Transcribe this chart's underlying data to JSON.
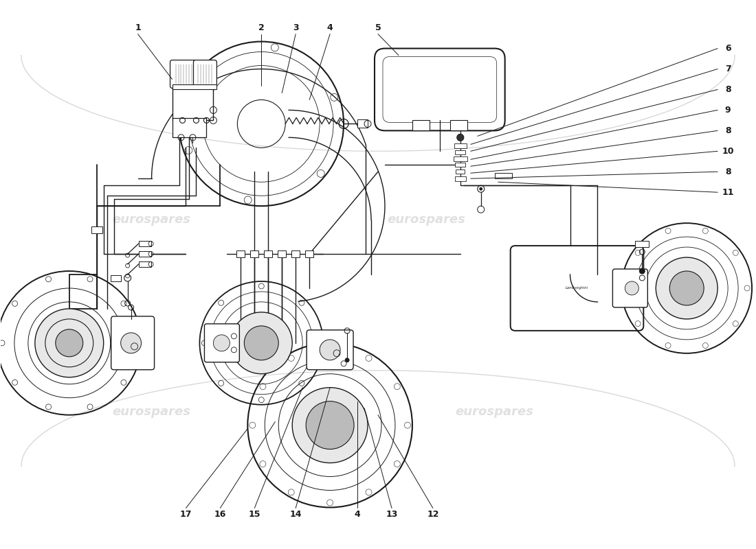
{
  "background": "#ffffff",
  "lc": "#1a1a1a",
  "wc": "#cccccc",
  "fig_w": 11.0,
  "fig_h": 8.0,
  "dpi": 100,
  "xlim": [
    0,
    110
  ],
  "ylim": [
    0,
    80
  ],
  "watermarks": [
    [
      22,
      48,
      "eurospares"
    ],
    [
      62,
      48,
      "eurospares"
    ],
    [
      22,
      20,
      "eurospares"
    ],
    [
      72,
      20,
      "eurospares"
    ]
  ],
  "num_labels_top": [
    [
      "1",
      20,
      76
    ],
    [
      "2",
      38,
      76
    ],
    [
      "3",
      43,
      76
    ],
    [
      "4",
      48,
      76
    ],
    [
      "5",
      55,
      76
    ]
  ],
  "num_labels_right": [
    [
      "6",
      106,
      73
    ],
    [
      "7",
      106,
      70
    ],
    [
      "8",
      106,
      67
    ],
    [
      "9",
      106,
      64
    ],
    [
      "8",
      106,
      61
    ],
    [
      "10",
      106,
      58
    ],
    [
      "8",
      106,
      55
    ],
    [
      "11",
      106,
      52
    ]
  ],
  "num_labels_bottom": [
    [
      "17",
      28,
      5
    ],
    [
      "16",
      33,
      5
    ],
    [
      "15",
      38,
      5
    ],
    [
      "14",
      43,
      5
    ],
    [
      "4",
      54,
      5
    ],
    [
      "13",
      59,
      5
    ],
    [
      "12",
      64,
      5
    ]
  ]
}
